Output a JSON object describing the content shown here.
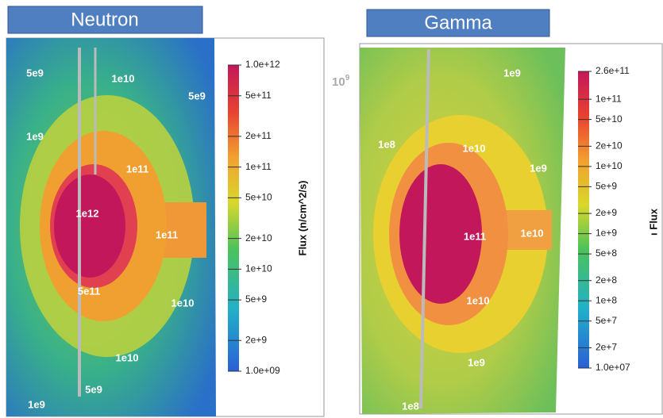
{
  "panels": [
    {
      "title": "Neutron",
      "colorbar": {
        "label": "Flux  (n/cm^2/s)",
        "log": true,
        "lim": [
          1000000000.0,
          1000000000000.0
        ],
        "ticks": [
          {
            "value": 1000000000000.0,
            "label": "1.0e+12"
          },
          {
            "value": 500000000000.0,
            "label": "5e+11"
          },
          {
            "value": 200000000000.0,
            "label": "2e+11"
          },
          {
            "value": 100000000000.0,
            "label": "1e+11"
          },
          {
            "value": 50000000000.0,
            "label": "5e+10"
          },
          {
            "value": 20000000000.0,
            "label": "2e+10"
          },
          {
            "value": 10000000000.0,
            "label": "1e+10"
          },
          {
            "value": 5000000000.0,
            "label": "5e+9"
          },
          {
            "value": 2000000000.0,
            "label": "2e+9"
          },
          {
            "value": 1000000000.0,
            "label": "1.0e+09"
          }
        ]
      },
      "contour_labels": [
        "5e9",
        "1e10",
        "5e9",
        "1e9",
        "1e11",
        "1e12",
        "1e11",
        "5e11",
        "1e10",
        "1e10",
        "5e9",
        "1e9"
      ]
    },
    {
      "title": "Gamma",
      "colorbar": {
        "label": "ı Flux",
        "log": true,
        "lim": [
          10000000.0,
          260000000000.0
        ],
        "ticks": [
          {
            "value": 260000000000.0,
            "label": "2.6e+11"
          },
          {
            "value": 100000000000.0,
            "label": "1e+11"
          },
          {
            "value": 50000000000.0,
            "label": "5e+10"
          },
          {
            "value": 20000000000.0,
            "label": "2e+10"
          },
          {
            "value": 10000000000.0,
            "label": "1e+10"
          },
          {
            "value": 5000000000.0,
            "label": "5e+9"
          },
          {
            "value": 2000000000.0,
            "label": "2e+9"
          },
          {
            "value": 1000000000.0,
            "label": "1e+9"
          },
          {
            "value": 500000000.0,
            "label": "5e+8"
          },
          {
            "value": 200000000.0,
            "label": "2e+8"
          },
          {
            "value": 100000000.0,
            "label": "1e+8"
          },
          {
            "value": 50000000.0,
            "label": "5e+7"
          },
          {
            "value": 20000000.0,
            "label": "2e+7"
          },
          {
            "value": 10000000.0,
            "label": "1.0e+07"
          }
        ]
      },
      "contour_labels": [
        "1e9",
        "1e8",
        "1e10",
        "1e9",
        "1e11",
        "1e10",
        "1e10",
        "1e9",
        "1e8"
      ]
    }
  ],
  "note": {
    "base": "10",
    "exponent": "9"
  }
}
